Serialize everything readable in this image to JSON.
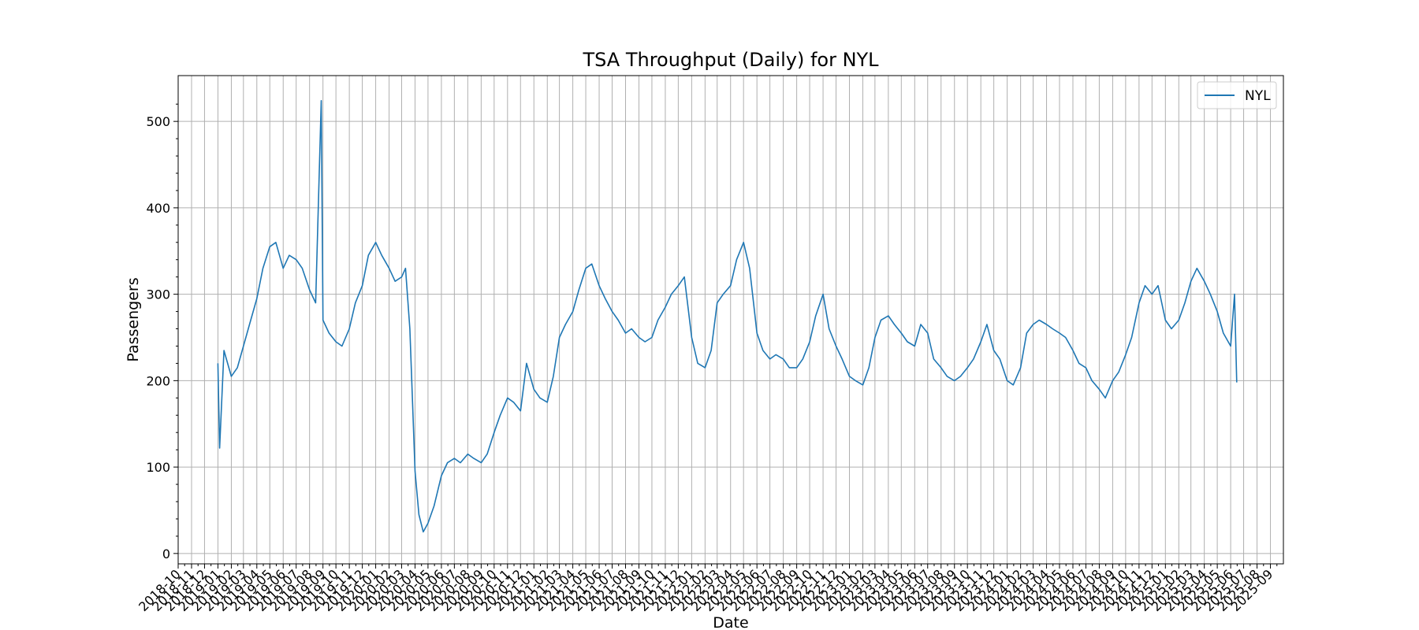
{
  "chart_data": {
    "type": "line",
    "title": "TSA Throughput (Daily) for NYL",
    "xlabel": "Date",
    "ylabel": "Passengers",
    "x_start": "2018-10-01",
    "x_end": "2025-10-01",
    "ylim": [
      -12,
      553
    ],
    "yticks": [
      0,
      100,
      200,
      300,
      400,
      500
    ],
    "x_tick_labels": [
      "2018-10",
      "2018-11",
      "2018-12",
      "2019-01",
      "2019-02",
      "2019-03",
      "2019-04",
      "2019-05",
      "2019-06",
      "2019-07",
      "2019-08",
      "2019-09",
      "2019-10",
      "2019-11",
      "2019-12",
      "2020-01",
      "2020-02",
      "2020-03",
      "2020-04",
      "2020-05",
      "2020-06",
      "2020-07",
      "2020-08",
      "2020-09",
      "2020-10",
      "2020-11",
      "2020-12",
      "2021-01",
      "2021-02",
      "2021-03",
      "2021-04",
      "2021-05",
      "2021-06",
      "2021-07",
      "2021-08",
      "2021-09",
      "2021-10",
      "2021-11",
      "2021-12",
      "2022-01",
      "2022-02",
      "2022-03",
      "2022-04",
      "2022-05",
      "2022-06",
      "2022-07",
      "2022-08",
      "2022-09",
      "2022-10",
      "2022-11",
      "2022-12",
      "2023-01",
      "2023-02",
      "2023-03",
      "2023-04",
      "2023-05",
      "2023-06",
      "2023-07",
      "2023-08",
      "2023-09",
      "2023-10",
      "2023-11",
      "2023-12",
      "2024-01",
      "2024-02",
      "2024-03",
      "2024-04",
      "2024-05",
      "2024-06",
      "2024-07",
      "2024-08",
      "2024-09",
      "2024-10",
      "2024-11",
      "2024-12",
      "2025-01",
      "2025-02",
      "2025-03",
      "2025-04",
      "2025-05",
      "2025-06",
      "2025-07",
      "2025-08",
      "2025-09"
    ],
    "grid": true,
    "legend_position": "top-right",
    "color": "#1f77b4",
    "series": [
      {
        "name": "NYL",
        "points": [
          [
            "2019-01-01",
            220
          ],
          [
            "2019-01-05",
            122
          ],
          [
            "2019-01-15",
            235
          ],
          [
            "2019-02-01",
            205
          ],
          [
            "2019-02-15",
            215
          ],
          [
            "2019-03-01",
            240
          ],
          [
            "2019-03-15",
            265
          ],
          [
            "2019-04-01",
            295
          ],
          [
            "2019-04-15",
            330
          ],
          [
            "2019-05-01",
            355
          ],
          [
            "2019-05-15",
            360
          ],
          [
            "2019-06-01",
            330
          ],
          [
            "2019-06-15",
            345
          ],
          [
            "2019-07-01",
            340
          ],
          [
            "2019-07-15",
            330
          ],
          [
            "2019-08-01",
            305
          ],
          [
            "2019-08-15",
            290
          ],
          [
            "2019-08-28",
            524
          ],
          [
            "2019-09-01",
            270
          ],
          [
            "2019-09-15",
            255
          ],
          [
            "2019-10-01",
            245
          ],
          [
            "2019-10-15",
            240
          ],
          [
            "2019-11-01",
            260
          ],
          [
            "2019-11-15",
            290
          ],
          [
            "2019-12-01",
            310
          ],
          [
            "2019-12-15",
            345
          ],
          [
            "2020-01-01",
            360
          ],
          [
            "2020-01-15",
            345
          ],
          [
            "2020-02-01",
            330
          ],
          [
            "2020-02-15",
            315
          ],
          [
            "2020-03-01",
            320
          ],
          [
            "2020-03-10",
            330
          ],
          [
            "2020-03-20",
            260
          ],
          [
            "2020-04-01",
            95
          ],
          [
            "2020-04-10",
            45
          ],
          [
            "2020-04-20",
            25
          ],
          [
            "2020-05-01",
            35
          ],
          [
            "2020-05-15",
            55
          ],
          [
            "2020-06-01",
            90
          ],
          [
            "2020-06-15",
            105
          ],
          [
            "2020-07-01",
            110
          ],
          [
            "2020-07-15",
            105
          ],
          [
            "2020-08-01",
            115
          ],
          [
            "2020-08-15",
            110
          ],
          [
            "2020-09-01",
            105
          ],
          [
            "2020-09-15",
            115
          ],
          [
            "2020-10-01",
            140
          ],
          [
            "2020-10-15",
            160
          ],
          [
            "2020-11-01",
            180
          ],
          [
            "2020-11-15",
            175
          ],
          [
            "2020-12-01",
            165
          ],
          [
            "2020-12-15",
            220
          ],
          [
            "2021-01-01",
            190
          ],
          [
            "2021-01-15",
            180
          ],
          [
            "2021-02-01",
            175
          ],
          [
            "2021-02-15",
            205
          ],
          [
            "2021-03-01",
            250
          ],
          [
            "2021-03-15",
            265
          ],
          [
            "2021-04-01",
            280
          ],
          [
            "2021-04-15",
            305
          ],
          [
            "2021-05-01",
            330
          ],
          [
            "2021-05-15",
            335
          ],
          [
            "2021-06-01",
            310
          ],
          [
            "2021-06-15",
            295
          ],
          [
            "2021-07-01",
            280
          ],
          [
            "2021-07-15",
            270
          ],
          [
            "2021-08-01",
            255
          ],
          [
            "2021-08-15",
            260
          ],
          [
            "2021-09-01",
            250
          ],
          [
            "2021-09-15",
            245
          ],
          [
            "2021-10-01",
            250
          ],
          [
            "2021-10-15",
            270
          ],
          [
            "2021-11-01",
            285
          ],
          [
            "2021-11-15",
            300
          ],
          [
            "2021-12-01",
            310
          ],
          [
            "2021-12-15",
            320
          ],
          [
            "2022-01-01",
            250
          ],
          [
            "2022-01-15",
            220
          ],
          [
            "2022-02-01",
            215
          ],
          [
            "2022-02-15",
            235
          ],
          [
            "2022-03-01",
            290
          ],
          [
            "2022-03-15",
            300
          ],
          [
            "2022-04-01",
            310
          ],
          [
            "2022-04-15",
            340
          ],
          [
            "2022-05-01",
            360
          ],
          [
            "2022-05-15",
            330
          ],
          [
            "2022-06-01",
            255
          ],
          [
            "2022-06-15",
            235
          ],
          [
            "2022-07-01",
            225
          ],
          [
            "2022-07-15",
            230
          ],
          [
            "2022-08-01",
            225
          ],
          [
            "2022-08-15",
            215
          ],
          [
            "2022-09-01",
            215
          ],
          [
            "2022-09-15",
            225
          ],
          [
            "2022-10-01",
            245
          ],
          [
            "2022-10-15",
            275
          ],
          [
            "2022-11-01",
            300
          ],
          [
            "2022-11-15",
            260
          ],
          [
            "2022-12-01",
            240
          ],
          [
            "2022-12-15",
            225
          ],
          [
            "2023-01-01",
            205
          ],
          [
            "2023-01-15",
            200
          ],
          [
            "2023-02-01",
            195
          ],
          [
            "2023-02-15",
            215
          ],
          [
            "2023-03-01",
            250
          ],
          [
            "2023-03-15",
            270
          ],
          [
            "2023-04-01",
            275
          ],
          [
            "2023-04-15",
            265
          ],
          [
            "2023-05-01",
            255
          ],
          [
            "2023-05-15",
            245
          ],
          [
            "2023-06-01",
            240
          ],
          [
            "2023-06-15",
            265
          ],
          [
            "2023-07-01",
            255
          ],
          [
            "2023-07-15",
            225
          ],
          [
            "2023-08-01",
            215
          ],
          [
            "2023-08-15",
            205
          ],
          [
            "2023-09-01",
            200
          ],
          [
            "2023-09-15",
            205
          ],
          [
            "2023-10-01",
            215
          ],
          [
            "2023-10-15",
            225
          ],
          [
            "2023-11-01",
            245
          ],
          [
            "2023-11-15",
            265
          ],
          [
            "2023-12-01",
            235
          ],
          [
            "2023-12-15",
            225
          ],
          [
            "2024-01-01",
            200
          ],
          [
            "2024-01-15",
            195
          ],
          [
            "2024-02-01",
            215
          ],
          [
            "2024-02-15",
            255
          ],
          [
            "2024-03-01",
            265
          ],
          [
            "2024-03-15",
            270
          ],
          [
            "2024-04-01",
            265
          ],
          [
            "2024-04-15",
            260
          ],
          [
            "2024-05-01",
            255
          ],
          [
            "2024-05-15",
            250
          ],
          [
            "2024-06-01",
            235
          ],
          [
            "2024-06-15",
            220
          ],
          [
            "2024-07-01",
            215
          ],
          [
            "2024-07-15",
            200
          ],
          [
            "2024-08-01",
            190
          ],
          [
            "2024-08-15",
            180
          ],
          [
            "2024-09-01",
            200
          ],
          [
            "2024-09-15",
            210
          ],
          [
            "2024-10-01",
            230
          ],
          [
            "2024-10-15",
            250
          ],
          [
            "2024-11-01",
            290
          ],
          [
            "2024-11-15",
            310
          ],
          [
            "2024-12-01",
            300
          ],
          [
            "2024-12-15",
            310
          ],
          [
            "2025-01-01",
            270
          ],
          [
            "2025-01-15",
            260
          ],
          [
            "2025-02-01",
            270
          ],
          [
            "2025-02-15",
            290
          ],
          [
            "2025-03-01",
            315
          ],
          [
            "2025-03-15",
            330
          ],
          [
            "2025-04-01",
            315
          ],
          [
            "2025-04-15",
            300
          ],
          [
            "2025-05-01",
            280
          ],
          [
            "2025-05-15",
            255
          ],
          [
            "2025-06-01",
            240
          ],
          [
            "2025-06-10",
            300
          ],
          [
            "2025-06-15",
            198
          ]
        ]
      }
    ]
  }
}
